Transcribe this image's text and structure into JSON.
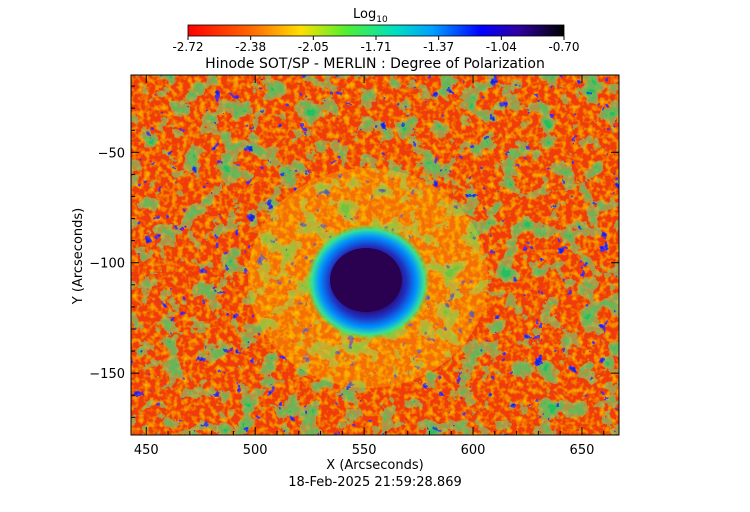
{
  "chart_data": {
    "type": "heatmap",
    "title": "Hinode SOT/SP - MERLIN : Degree of Polarization",
    "xlabel": "X (Arcseconds)",
    "ylabel": "Y (Arcseconds)",
    "timestamp": "18-Feb-2025 21:59:28.869",
    "colorbar": {
      "label": "Log",
      "label_sub": "10",
      "ticks": [
        "-2.72",
        "-2.38",
        "-2.05",
        "-1.71",
        "-1.37",
        "-1.04",
        "-0.70"
      ],
      "range": [
        -2.72,
        -0.7
      ],
      "colormap": "rainbow"
    },
    "xlim": [
      443,
      667
    ],
    "ylim": [
      -178,
      -15
    ],
    "xticks": [
      450,
      500,
      550,
      600,
      650
    ],
    "xtick_labels": [
      "450",
      "500",
      "550",
      "600",
      "650"
    ],
    "yticks": [
      -50,
      -100,
      -150
    ],
    "ytick_labels": [
      "−50",
      "−100",
      "−150"
    ],
    "features": [
      {
        "type": "sunspot_umbra",
        "x": 552,
        "y": -110,
        "log_value": -0.72
      },
      {
        "type": "sunspot_penumbra",
        "x": 552,
        "y": -110,
        "log_value": -1.1
      }
    ]
  }
}
